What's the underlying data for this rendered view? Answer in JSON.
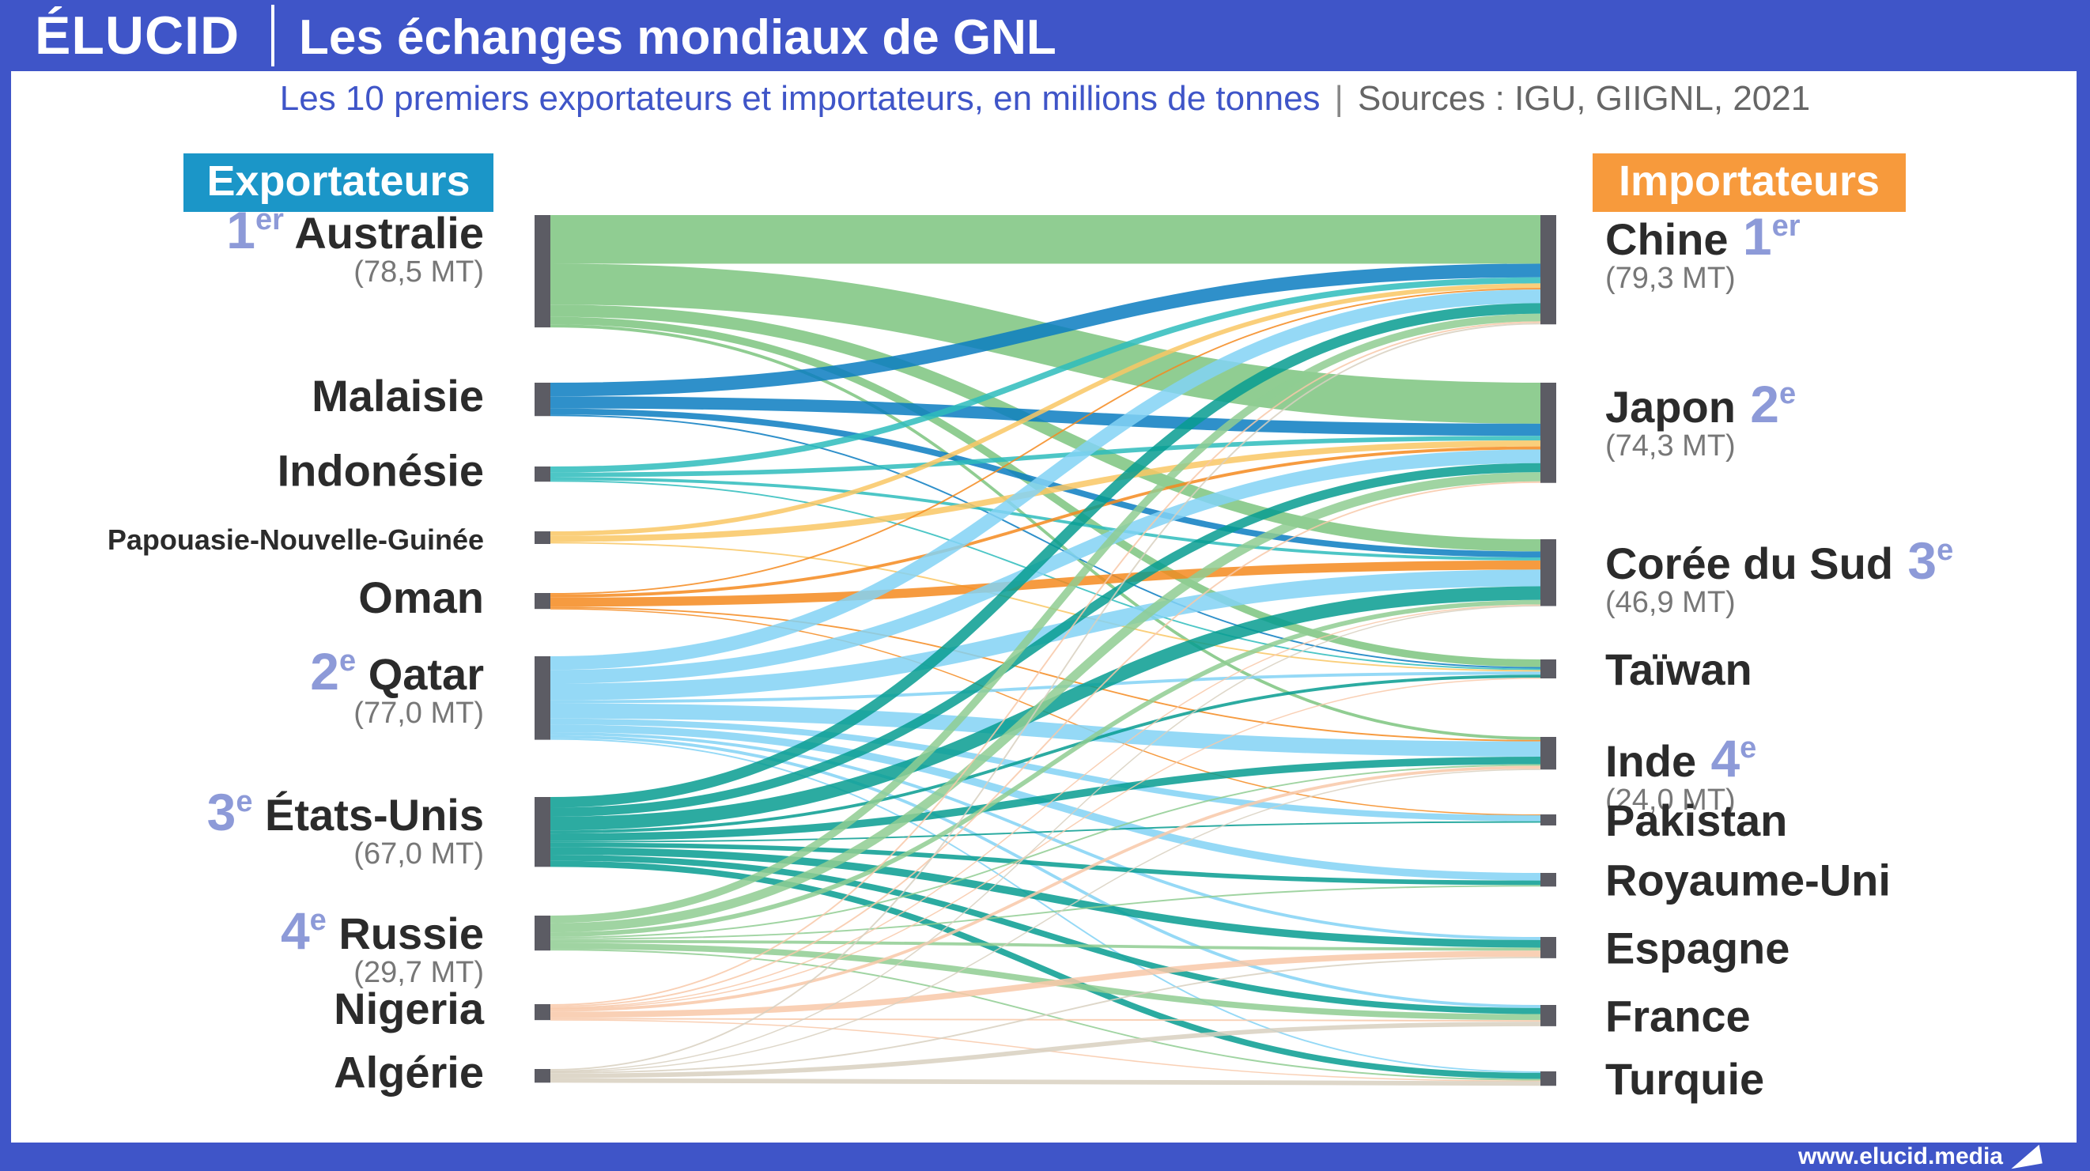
{
  "header": {
    "logo": "ÉLUCID",
    "title": "Les échanges mondiaux de GNL"
  },
  "subtitle": {
    "text": "Les 10 premiers exportateurs et importateurs, en millions de tonnes",
    "sources": "Sources : IGU, GIIGNL, 2021"
  },
  "footer": {
    "url": "www.elucid.media"
  },
  "headers": {
    "exporters": "Exportateurs",
    "importers": "Importateurs"
  },
  "colors": {
    "brand": "#3f55c8",
    "exporters_header": "#1b96c8",
    "importers_header": "#f79a3c",
    "rank": "#8d9ad8",
    "node": "#5c5c64"
  },
  "exporters": [
    {
      "name": "Australie",
      "rank": "1",
      "rank_sup": "er",
      "value": "(78,5 MT)",
      "color": "#7cc47f"
    },
    {
      "name": "Malaisie",
      "rank": "",
      "rank_sup": "",
      "value": "",
      "color": "#0a7cc1"
    },
    {
      "name": "Indonésie",
      "rank": "",
      "rank_sup": "",
      "value": "",
      "color": "#2ebcbc"
    },
    {
      "name": "Papouasie-Nouvelle-Guinée",
      "rank": "",
      "rank_sup": "",
      "value": "",
      "color": "#f9c764"
    },
    {
      "name": "Oman",
      "rank": "",
      "rank_sup": "",
      "value": "",
      "color": "#f48a1e"
    },
    {
      "name": "Qatar",
      "rank": "2",
      "rank_sup": "e",
      "value": "(77,0 MT)",
      "color": "#82d2f5"
    },
    {
      "name": "États-Unis",
      "rank": "3",
      "rank_sup": "e",
      "value": "(67,0 MT)",
      "color": "#079c91"
    },
    {
      "name": "Russie",
      "rank": "4",
      "rank_sup": "e",
      "value": "(29,7 MT)",
      "color": "#8fcc92"
    },
    {
      "name": "Nigeria",
      "rank": "",
      "rank_sup": "",
      "value": "",
      "color": "#f8c8a8"
    },
    {
      "name": "Algérie",
      "rank": "",
      "rank_sup": "",
      "value": "",
      "color": "#d8d0c0"
    }
  ],
  "importers": [
    {
      "name": "Chine",
      "rank": "1",
      "rank_sup": "er",
      "value": "(79,3 MT)"
    },
    {
      "name": "Japon",
      "rank": "2",
      "rank_sup": "e",
      "value": "(74,3 MT)"
    },
    {
      "name": "Corée du Sud",
      "rank": "3",
      "rank_sup": "e",
      "value": "(46,9 MT)"
    },
    {
      "name": "Taïwan",
      "rank": "",
      "rank_sup": "",
      "value": ""
    },
    {
      "name": "Inde",
      "rank": "4",
      "rank_sup": "e",
      "value": "(24,0 MT)"
    },
    {
      "name": "Pakistan",
      "rank": "",
      "rank_sup": "",
      "value": ""
    },
    {
      "name": "Royaume-Uni",
      "rank": "",
      "rank_sup": "",
      "value": ""
    },
    {
      "name": "Espagne",
      "rank": "",
      "rank_sup": "",
      "value": ""
    },
    {
      "name": "France",
      "rank": "",
      "rank_sup": "",
      "value": ""
    },
    {
      "name": "Turquie",
      "rank": "",
      "rank_sup": "",
      "value": ""
    }
  ],
  "flows": [
    {
      "from": 0,
      "to": 0,
      "value": 32
    },
    {
      "from": 0,
      "to": 1,
      "value": 27
    },
    {
      "from": 0,
      "to": 2,
      "value": 8
    },
    {
      "from": 0,
      "to": 3,
      "value": 5
    },
    {
      "from": 0,
      "to": 4,
      "value": 2
    },
    {
      "from": 1,
      "to": 0,
      "value": 9
    },
    {
      "from": 1,
      "to": 1,
      "value": 8
    },
    {
      "from": 1,
      "to": 2,
      "value": 4
    },
    {
      "from": 1,
      "to": 3,
      "value": 1
    },
    {
      "from": 2,
      "to": 0,
      "value": 4
    },
    {
      "from": 2,
      "to": 1,
      "value": 3
    },
    {
      "from": 2,
      "to": 2,
      "value": 2
    },
    {
      "from": 2,
      "to": 3,
      "value": 1
    },
    {
      "from": 3,
      "to": 0,
      "value": 3
    },
    {
      "from": 3,
      "to": 1,
      "value": 4
    },
    {
      "from": 3,
      "to": 3,
      "value": 1
    },
    {
      "from": 4,
      "to": 0,
      "value": 1
    },
    {
      "from": 4,
      "to": 1,
      "value": 2
    },
    {
      "from": 4,
      "to": 2,
      "value": 6
    },
    {
      "from": 4,
      "to": 4,
      "value": 1
    },
    {
      "from": 4,
      "to": 5,
      "value": 0.5
    },
    {
      "from": 5,
      "to": 0,
      "value": 9
    },
    {
      "from": 5,
      "to": 1,
      "value": 9
    },
    {
      "from": 5,
      "to": 2,
      "value": 11
    },
    {
      "from": 5,
      "to": 3,
      "value": 2
    },
    {
      "from": 5,
      "to": 4,
      "value": 10
    },
    {
      "from": 5,
      "to": 5,
      "value": 4
    },
    {
      "from": 5,
      "to": 6,
      "value": 5
    },
    {
      "from": 5,
      "to": 7,
      "value": 2
    },
    {
      "from": 5,
      "to": 8,
      "value": 2
    },
    {
      "from": 5,
      "to": 9,
      "value": 1
    },
    {
      "from": 6,
      "to": 0,
      "value": 7
    },
    {
      "from": 6,
      "to": 1,
      "value": 6
    },
    {
      "from": 6,
      "to": 2,
      "value": 9
    },
    {
      "from": 6,
      "to": 3,
      "value": 2
    },
    {
      "from": 6,
      "to": 4,
      "value": 5
    },
    {
      "from": 6,
      "to": 5,
      "value": 1
    },
    {
      "from": 6,
      "to": 6,
      "value": 3
    },
    {
      "from": 6,
      "to": 7,
      "value": 5
    },
    {
      "from": 6,
      "to": 8,
      "value": 4
    },
    {
      "from": 6,
      "to": 9,
      "value": 4
    },
    {
      "from": 7,
      "to": 0,
      "value": 5
    },
    {
      "from": 7,
      "to": 1,
      "value": 6
    },
    {
      "from": 7,
      "to": 2,
      "value": 3
    },
    {
      "from": 7,
      "to": 4,
      "value": 1
    },
    {
      "from": 7,
      "to": 6,
      "value": 1
    },
    {
      "from": 7,
      "to": 7,
      "value": 2
    },
    {
      "from": 7,
      "to": 8,
      "value": 4
    },
    {
      "from": 7,
      "to": 9,
      "value": 1
    },
    {
      "from": 8,
      "to": 0,
      "value": 1
    },
    {
      "from": 8,
      "to": 1,
      "value": 1
    },
    {
      "from": 8,
      "to": 2,
      "value": 0.5
    },
    {
      "from": 8,
      "to": 3,
      "value": 0.5
    },
    {
      "from": 8,
      "to": 4,
      "value": 2
    },
    {
      "from": 8,
      "to": 7,
      "value": 4
    },
    {
      "from": 8,
      "to": 8,
      "value": 1
    },
    {
      "from": 8,
      "to": 9,
      "value": 0.5
    },
    {
      "from": 9,
      "to": 0,
      "value": 1
    },
    {
      "from": 9,
      "to": 2,
      "value": 0.5
    },
    {
      "from": 9,
      "to": 4,
      "value": 0.5
    },
    {
      "from": 9,
      "to": 7,
      "value": 1
    },
    {
      "from": 9,
      "to": 8,
      "value": 3
    },
    {
      "from": 9,
      "to": 9,
      "value": 3
    }
  ]
}
